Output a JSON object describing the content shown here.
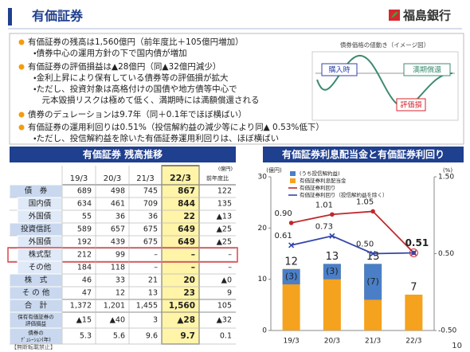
{
  "header": {
    "title": "有価証券",
    "logo": "福島銀行"
  },
  "summary": {
    "bullets": [
      {
        "text": "有価証券の残高は1,560億円（前年度比＋105億円増加）",
        "subs": [
          "・債券中心の運用方針の下で国内債が増加"
        ]
      },
      {
        "text": "有価証券の評価損益は▲28億円（同▲32億円減少）",
        "subs": [
          "・金利上昇により保有している債券等の評価損が拡大",
          "・ただし、投資対象は高格付けの国債や地方債等中心で",
          "　元本毀損リスクは極めて低く、満期時には満額償還される"
        ]
      },
      {
        "text": "債券のデュレーションは9.7年（同＋0.1年でほぼ横ばい）",
        "subs": []
      },
      {
        "text": "有価証券の運用利回りは0.51%（投信解約益の減少等により同▲ 0.53%低下）",
        "subs": [
          "・ただし、投信解約益を除いた有価証券運用利回りは、ほぼ横ばい"
        ]
      }
    ]
  },
  "diagram": {
    "title": "債券価格の値動き（イメージ図）",
    "labels": [
      "購入時",
      "満期償還",
      "評価損"
    ]
  },
  "table": {
    "title": "有価証券 残高推移",
    "unit": "(億円)",
    "columns": [
      "19/3",
      "20/3",
      "21/3",
      "22/3",
      "前年度比"
    ],
    "rows": [
      {
        "label": "債　券",
        "values": [
          "689",
          "498",
          "745",
          "867",
          "122"
        ]
      },
      {
        "label": "国内債",
        "values": [
          "634",
          "461",
          "709",
          "844",
          "135"
        ]
      },
      {
        "label": "外国債",
        "values": [
          "55",
          "36",
          "36",
          "22",
          "▲13"
        ]
      },
      {
        "label": "投資信託",
        "values": [
          "589",
          "657",
          "675",
          "649",
          "▲25"
        ]
      },
      {
        "label": "外国債",
        "values": [
          "192",
          "439",
          "675",
          "649",
          "▲25"
        ]
      },
      {
        "label": "株式型",
        "values": [
          "212",
          "99",
          "–",
          "–",
          "–"
        ]
      },
      {
        "label": "その他",
        "values": [
          "184",
          "118",
          "–",
          "–",
          "–"
        ]
      },
      {
        "label": "株　式",
        "values": [
          "46",
          "33",
          "21",
          "20",
          "▲0"
        ]
      },
      {
        "label": "そ の 他",
        "values": [
          "47",
          "12",
          "13",
          "23",
          "9"
        ]
      },
      {
        "label": "合　計",
        "values": [
          "1,372",
          "1,201",
          "1,455",
          "1,560",
          "105"
        ]
      },
      {
        "label": [
          "保有有価証券の",
          "評価損益"
        ],
        "values": [
          "▲15",
          "▲40",
          "3",
          "▲28",
          "▲32"
        ]
      },
      {
        "label": [
          "債券の",
          "ﾃﾞｭﾚｰｼｮﾝ(年)"
        ],
        "values": [
          "5.3",
          "5.6",
          "9.6",
          "9.7",
          "0.1"
        ]
      }
    ]
  },
  "chart_data": {
    "type": "combo",
    "title": "有価証券利息配当金と有価証券利回り",
    "y_label": "(億円)",
    "y2_label": "(%)",
    "categories": [
      "19/3",
      "20/3",
      "21/3",
      "22/3"
    ],
    "ylim": [
      0,
      30
    ],
    "yticks": [
      0,
      10,
      20,
      30
    ],
    "y2lim": [
      -0.5,
      1.5
    ],
    "y2ticks": [
      {
        "value": -0.5,
        "label": "-0.50"
      },
      {
        "value": 0.5,
        "label": "0.50"
      },
      {
        "value": 1.5,
        "label": "1.50"
      }
    ],
    "grid": false,
    "legend": "top-left",
    "series": [
      {
        "name": "(うち投信解約益)",
        "type": "bar",
        "color": "#4a7fc8",
        "values": [
          3,
          3,
          7,
          null
        ],
        "value_labels": [
          "(3)",
          "(3)",
          "(7)",
          null
        ]
      },
      {
        "name": "有価証券利息配当金",
        "type": "bar",
        "color": "#f5a21e",
        "values": [
          12,
          13,
          13,
          7
        ]
      },
      {
        "name": "有価証券利回り",
        "type": "line",
        "axis": "y2",
        "color": "#c0282d",
        "values": [
          0.9,
          1.01,
          1.05,
          0.51
        ],
        "value_labels": [
          "0.90",
          "1.01",
          "1.05",
          "0.51"
        ]
      },
      {
        "name": "有価証券利回り（投信解約益を除く）",
        "type": "line",
        "axis": "y2",
        "color": "#3346a8",
        "values": [
          0.61,
          0.73,
          0.5,
          0.51
        ],
        "value_labels": [
          "0.61",
          "0.73",
          "0.50",
          null
        ]
      }
    ]
  },
  "footer": {
    "notice": "【無断転載禁止】",
    "page": "10"
  }
}
